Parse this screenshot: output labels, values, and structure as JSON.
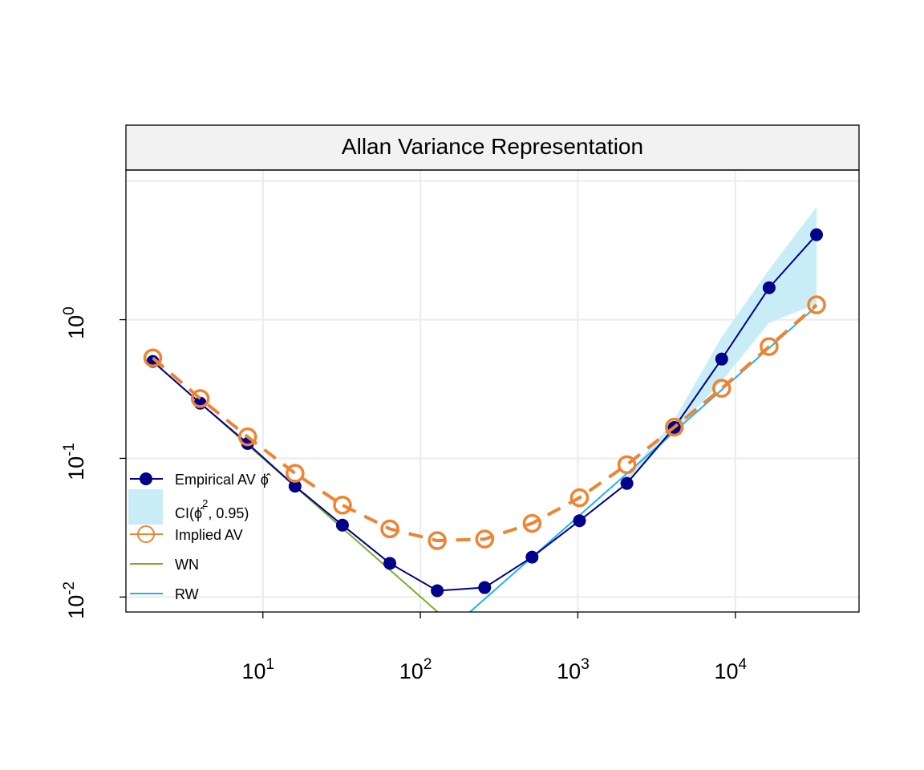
{
  "chart_data": {
    "type": "line",
    "title": "Allan Variance Representation",
    "xlabel": "",
    "ylabel": "",
    "x_scale": "log10",
    "y_scale": "log10",
    "xlim": [
      1.35,
      61000
    ],
    "ylim": [
      0.0078,
      12
    ],
    "x_ticks": [
      {
        "value": 10,
        "base": "10",
        "exp": "1"
      },
      {
        "value": 100,
        "base": "10",
        "exp": "2"
      },
      {
        "value": 1000,
        "base": "10",
        "exp": "3"
      },
      {
        "value": 10000,
        "base": "10",
        "exp": "4"
      }
    ],
    "y_ticks": [
      {
        "value": 0.01,
        "base": "10",
        "exp": "-2"
      },
      {
        "value": 0.1,
        "base": "10",
        "exp": "-1"
      },
      {
        "value": 1,
        "base": "10",
        "exp": "0"
      }
    ],
    "grid": true,
    "legend_position": "bottom-left",
    "series": [
      {
        "name": "Empirical AV",
        "name_suffix": "ϕ̂",
        "color": "#00008B",
        "x": [
          2,
          4,
          8,
          16,
          32,
          64,
          128,
          256,
          512,
          1024,
          2048,
          4096,
          8192,
          16384,
          32768
        ],
        "y": [
          0.5,
          0.25,
          0.128,
          0.063,
          0.033,
          0.0175,
          0.0111,
          0.0117,
          0.0194,
          0.0355,
          0.066,
          0.167,
          0.52,
          1.7,
          4.1
        ]
      },
      {
        "name": "Implied AV",
        "color": "#EE8432",
        "x": [
          2,
          4,
          8,
          16,
          32,
          64,
          128,
          256,
          512,
          1024,
          2048,
          4096,
          8192,
          16384,
          32768
        ],
        "y": [
          0.53,
          0.27,
          0.143,
          0.078,
          0.046,
          0.031,
          0.0255,
          0.0262,
          0.034,
          0.052,
          0.09,
          0.168,
          0.32,
          0.64,
          1.28
        ]
      },
      {
        "name": "WN",
        "color": "#7CAE28",
        "x": [
          2,
          150
        ],
        "y": [
          0.5,
          0.0067
        ]
      },
      {
        "name": "RW",
        "color": "#1EB4E6",
        "x": [
          180,
          32768
        ],
        "y": [
          0.0068,
          1.25
        ]
      }
    ],
    "ci_band": {
      "name": "CI(",
      "name_hat": "ϕ̂",
      "name_sup": "2",
      "name_tail": ", 0.95)",
      "color": "#C9EDF6",
      "x": [
        2048,
        4096,
        8192,
        16384,
        32768
      ],
      "lower": [
        0.066,
        0.155,
        0.36,
        0.95,
        1.3
      ],
      "upper": [
        0.075,
        0.19,
        0.75,
        2.3,
        6.5
      ]
    }
  }
}
